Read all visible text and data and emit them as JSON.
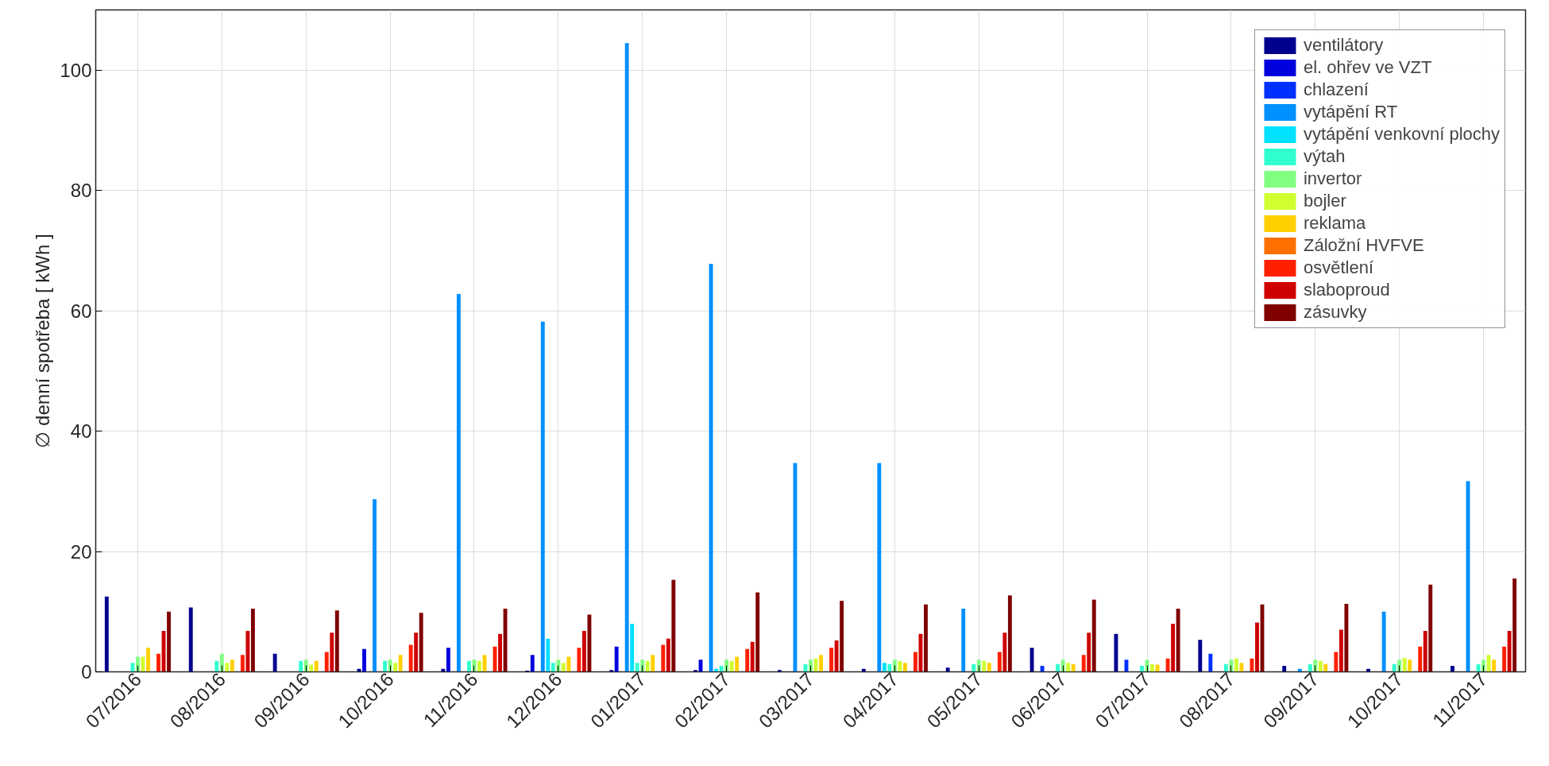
{
  "chart_data": {
    "type": "bar",
    "ylabel": "∅ denní spotřeba [ kWh ]",
    "categories": [
      "07/2016",
      "08/2016",
      "09/2016",
      "10/2016",
      "11/2016",
      "12/2016",
      "01/2017",
      "02/2017",
      "03/2017",
      "04/2017",
      "05/2017",
      "06/2017",
      "07/2017",
      "08/2017",
      "09/2017",
      "10/2017",
      "11/2017"
    ],
    "ylim": [
      0,
      110
    ],
    "yticks": [
      0,
      20,
      40,
      60,
      80,
      100
    ],
    "grid": true,
    "legend": "top right",
    "series": [
      {
        "name": "ventilátory",
        "color": "#00008f",
        "values": [
          12.5,
          10.7,
          3,
          0.5,
          0.5,
          0.2,
          0.3,
          0.3,
          0.3,
          0.5,
          0.7,
          4,
          6.3,
          5.3,
          1,
          0.5,
          1
        ]
      },
      {
        "name": "el. ohřev ve VZT",
        "color": "#0000df",
        "values": [
          0,
          0,
          0,
          3.8,
          4,
          2.8,
          4.2,
          2,
          0,
          0,
          0,
          0,
          0,
          0,
          0,
          0,
          0
        ]
      },
      {
        "name": "chlazení",
        "color": "#0030ff",
        "values": [
          0,
          0,
          0,
          0,
          0,
          0,
          0,
          0,
          0,
          0,
          0,
          1,
          2,
          3,
          0,
          0,
          0
        ]
      },
      {
        "name": "vytápění RT",
        "color": "#0090ff",
        "values": [
          0,
          0,
          0,
          28.7,
          62.8,
          58.2,
          104.5,
          67.8,
          34.7,
          34.7,
          10.5,
          0,
          0,
          0,
          0.5,
          10,
          31.7
        ]
      },
      {
        "name": "vytápění venkovní plochy",
        "color": "#00e0ff",
        "values": [
          0,
          0,
          0,
          0,
          0,
          5.5,
          8,
          0.5,
          0,
          1.5,
          0,
          0,
          0,
          0,
          0,
          0,
          0
        ]
      },
      {
        "name": "výtah",
        "color": "#30ffcf",
        "values": [
          1.5,
          1.8,
          1.8,
          1.8,
          1.8,
          1.5,
          1.5,
          1,
          1.3,
          1.3,
          1.3,
          1.3,
          1,
          1.3,
          1.3,
          1.3,
          1.3
        ]
      },
      {
        "name": "invertor",
        "color": "#80ff80",
        "values": [
          2.5,
          3,
          2,
          2,
          2,
          2,
          2,
          2,
          2,
          2,
          2,
          2,
          2,
          2,
          2,
          2,
          2
        ]
      },
      {
        "name": "bojler",
        "color": "#cfff30",
        "values": [
          2.5,
          1.5,
          1.2,
          1.5,
          1.8,
          1.5,
          1.8,
          1.8,
          2.2,
          1.8,
          1.8,
          1.5,
          1.3,
          2.2,
          1.8,
          2.3,
          2.8
        ]
      },
      {
        "name": "reklama",
        "color": "#ffcf00",
        "values": [
          4,
          2,
          1.8,
          2.8,
          2.8,
          2.5,
          2.8,
          2.5,
          2.8,
          1.5,
          1.5,
          1.3,
          1.2,
          1.5,
          1.3,
          2,
          2
        ]
      },
      {
        "name": "Záložní HVFVE",
        "color": "#ff7000",
        "values": [
          0,
          0,
          0,
          0,
          0,
          0,
          0,
          0,
          0,
          0,
          0,
          0,
          0,
          0,
          0,
          0,
          0
        ]
      },
      {
        "name": "osvětlení",
        "color": "#ff2000",
        "values": [
          3,
          2.8,
          3.3,
          4.5,
          4.2,
          4,
          4.5,
          3.8,
          4,
          3.3,
          3.3,
          2.8,
          2.2,
          2.2,
          3.3,
          4.2,
          4.2
        ]
      },
      {
        "name": "slaboproud",
        "color": "#cf0000",
        "values": [
          6.8,
          6.8,
          6.5,
          6.5,
          6.3,
          6.8,
          5.5,
          5,
          5.2,
          6.3,
          6.5,
          6.5,
          8,
          8.2,
          7,
          6.8,
          6.8
        ]
      },
      {
        "name": "zásuvky",
        "color": "#800000",
        "values": [
          10,
          10.5,
          10.2,
          9.8,
          10.5,
          9.5,
          15.3,
          13.2,
          11.8,
          11.2,
          12.7,
          12,
          10.5,
          11.2,
          11.3,
          14.5,
          15.5
        ]
      }
    ]
  }
}
